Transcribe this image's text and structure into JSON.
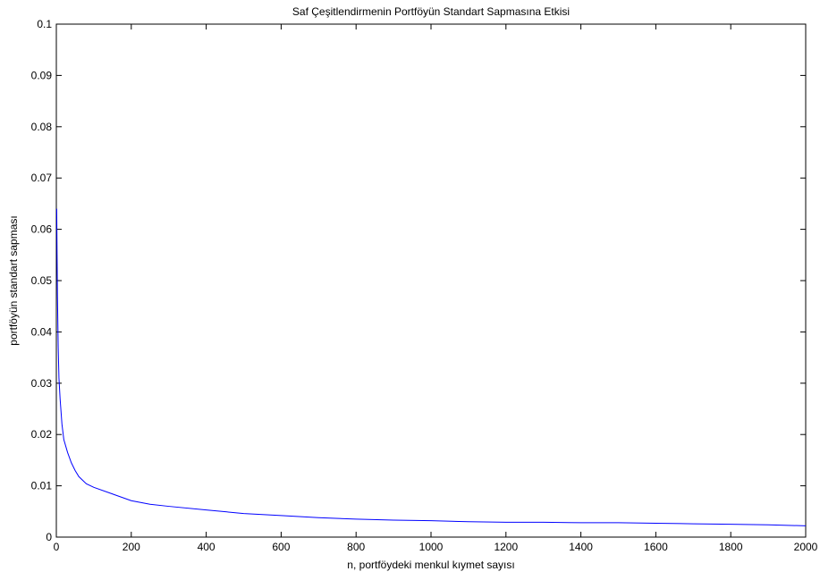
{
  "chart_data": {
    "type": "line",
    "title": "Saf Çeşitlendirmenin Portföyün Standart Sapmasına Etkisi",
    "xlabel": "n, portföydeki menkul kıymet sayısı",
    "ylabel": "portföyün standart sapması",
    "xlim": [
      0,
      2000
    ],
    "ylim": [
      0,
      0.1
    ],
    "xticks": [
      0,
      200,
      400,
      600,
      800,
      1000,
      1200,
      1400,
      1600,
      1800,
      2000
    ],
    "xtick_labels": [
      "0",
      "200",
      "400",
      "600",
      "800",
      "1000",
      "1200",
      "1400",
      "1600",
      "1800",
      "2000"
    ],
    "yticks": [
      0,
      0.01,
      0.02,
      0.03,
      0.04,
      0.05,
      0.06,
      0.07,
      0.08,
      0.09,
      0.1
    ],
    "ytick_labels": [
      "0",
      "0.01",
      "0.02",
      "0.03",
      "0.04",
      "0.05",
      "0.06",
      "0.07",
      "0.08",
      "0.09",
      "0.1"
    ],
    "grid": false,
    "series": [
      {
        "color": "#0000ff",
        "x": [
          1,
          2,
          3,
          4,
          5,
          7,
          10,
          15,
          20,
          30,
          40,
          50,
          60,
          80,
          100,
          150,
          200,
          250,
          300,
          400,
          500,
          600,
          700,
          800,
          900,
          1000,
          1100,
          1200,
          1300,
          1400,
          1500,
          1600,
          1700,
          1800,
          1900,
          2000
        ],
        "y": [
          0.064,
          0.055,
          0.047,
          0.042,
          0.037,
          0.031,
          0.027,
          0.022,
          0.019,
          0.0165,
          0.0145,
          0.013,
          0.0118,
          0.0104,
          0.0097,
          0.0084,
          0.0071,
          0.0064,
          0.006,
          0.0053,
          0.0046,
          0.0042,
          0.0038,
          0.0035,
          0.0033,
          0.0032,
          0.003,
          0.0029,
          0.0029,
          0.0028,
          0.0028,
          0.0027,
          0.0026,
          0.0025,
          0.0024,
          0.0022
        ]
      }
    ]
  }
}
